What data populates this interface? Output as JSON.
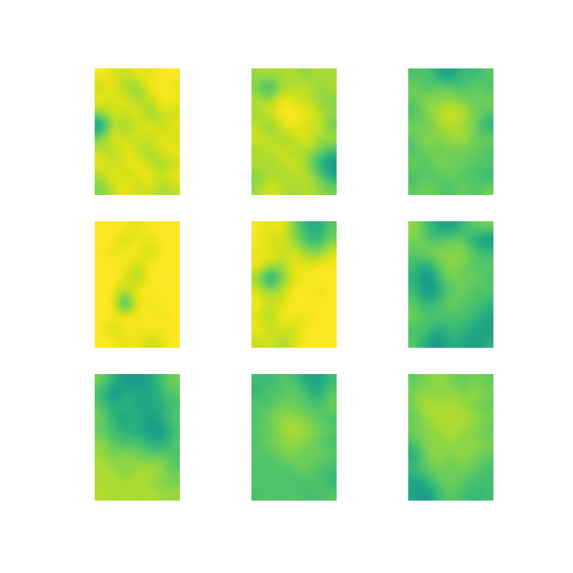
{
  "chart_data": [
    {
      "type": "heatmap",
      "tick_labels": false,
      "zlim": [
        0,
        1
      ],
      "cells": [
        [
          1,
          0.95,
          0.9,
          1,
          0.95,
          1,
          1
        ],
        [
          0.9,
          1,
          0.85,
          0.8,
          1,
          1,
          0.95
        ],
        [
          1,
          0.9,
          1,
          0.85,
          0.9,
          1,
          1
        ],
        [
          0.85,
          0.95,
          0.9,
          1,
          0.8,
          0.95,
          0.9
        ],
        [
          0.5,
          0.9,
          0.85,
          0.9,
          1,
          0.85,
          1
        ],
        [
          0.8,
          1,
          0.9,
          0.95,
          0.9,
          1,
          0.9
        ],
        [
          0.9,
          0.85,
          1,
          0.9,
          0.85,
          0.95,
          1
        ],
        [
          1,
          0.9,
          0.95,
          1,
          0.9,
          0.85,
          0.9
        ],
        [
          0.85,
          1,
          0.9,
          0.95,
          1,
          0.9,
          1
        ],
        [
          0.8,
          0.9,
          1,
          0.9,
          0.95,
          0.85,
          0.9
        ]
      ]
    },
    {
      "type": "heatmap",
      "tick_labels": false,
      "zlim": [
        0,
        1
      ],
      "cells": [
        [
          0.85,
          0.9,
          0.85,
          0.9,
          0.8,
          0.9,
          0.85
        ],
        [
          0.8,
          0.6,
          0.9,
          0.85,
          0.95,
          0.8,
          0.9
        ],
        [
          0.9,
          0.85,
          1,
          0.95,
          0.9,
          0.85,
          0.8
        ],
        [
          0.85,
          0.95,
          1,
          1,
          1,
          0.9,
          0.85
        ],
        [
          0.9,
          0.8,
          0.95,
          1,
          0.9,
          0.95,
          0.75
        ],
        [
          0.95,
          0.9,
          0.85,
          0.9,
          1,
          0.85,
          0.9
        ],
        [
          0.85,
          0.9,
          0.95,
          0.85,
          0.9,
          0.8,
          0.7
        ],
        [
          0.9,
          0.85,
          0.9,
          0.95,
          0.85,
          0.65,
          0.5
        ],
        [
          0.8,
          0.9,
          0.85,
          0.9,
          0.9,
          0.8,
          0.6
        ],
        [
          0.85,
          0.95,
          0.9,
          0.85,
          0.9,
          0.85,
          0.8
        ]
      ]
    },
    {
      "type": "heatmap",
      "tick_labels": false,
      "zlim": [
        0,
        1
      ],
      "cells": [
        [
          0.7,
          0.75,
          0.6,
          0.55,
          0.7,
          0.65,
          0.75
        ],
        [
          0.8,
          0.7,
          0.8,
          0.75,
          0.7,
          0.8,
          0.7
        ],
        [
          0.75,
          0.85,
          0.8,
          0.85,
          0.8,
          0.75,
          0.8
        ],
        [
          0.7,
          0.8,
          0.9,
          0.95,
          0.9,
          0.8,
          0.75
        ],
        [
          0.8,
          0.75,
          0.85,
          0.9,
          0.85,
          0.8,
          0.6
        ],
        [
          0.75,
          0.85,
          0.8,
          0.85,
          0.9,
          0.75,
          0.8
        ],
        [
          0.7,
          0.8,
          0.75,
          0.8,
          0.75,
          0.8,
          0.7
        ],
        [
          0.8,
          0.7,
          0.85,
          0.75,
          0.8,
          0.7,
          0.75
        ],
        [
          0.7,
          0.75,
          0.7,
          0.8,
          0.7,
          0.75,
          0.65
        ],
        [
          0.75,
          0.8,
          0.75,
          0.7,
          0.8,
          0.7,
          0.8
        ]
      ]
    },
    {
      "type": "heatmap",
      "tick_labels": false,
      "zlim": [
        0,
        1
      ],
      "cells": [
        [
          1,
          1,
          1,
          0.95,
          1,
          1,
          1
        ],
        [
          1,
          1,
          0.9,
          1,
          0.95,
          1,
          1
        ],
        [
          1,
          0.95,
          1,
          1,
          0.9,
          1,
          1
        ],
        [
          1,
          1,
          1,
          0.9,
          1,
          1,
          1
        ],
        [
          1,
          1,
          0.95,
          0.85,
          1,
          1,
          1
        ],
        [
          1,
          1,
          0.9,
          1,
          1,
          1,
          1
        ],
        [
          1,
          1,
          0.55,
          1,
          0.95,
          1,
          1
        ],
        [
          1,
          1,
          1,
          1,
          1,
          0.95,
          1
        ],
        [
          1,
          0.9,
          1,
          0.95,
          1,
          1,
          1
        ],
        [
          1,
          1,
          0.95,
          1,
          0.9,
          0.95,
          1
        ]
      ]
    },
    {
      "type": "heatmap",
      "tick_labels": false,
      "zlim": [
        0,
        1
      ],
      "cells": [
        [
          1,
          0.95,
          1,
          0.8,
          0.65,
          0.6,
          0.75
        ],
        [
          1,
          0.9,
          0.95,
          0.85,
          0.7,
          0.65,
          0.8
        ],
        [
          0.95,
          1,
          0.9,
          0.95,
          0.85,
          0.8,
          0.95
        ],
        [
          1,
          0.9,
          0.85,
          1,
          0.95,
          1,
          1
        ],
        [
          0.85,
          0.5,
          0.8,
          0.95,
          1,
          1,
          1
        ],
        [
          0.95,
          0.85,
          0.9,
          1,
          1,
          0.95,
          1
        ],
        [
          1,
          0.9,
          0.95,
          1,
          1,
          1,
          1
        ],
        [
          0.95,
          0.85,
          1,
          1,
          0.95,
          1,
          1
        ],
        [
          1,
          0.9,
          0.95,
          0.9,
          1,
          1,
          1
        ],
        [
          0.9,
          0.95,
          0.85,
          0.95,
          1,
          1,
          1
        ]
      ]
    },
    {
      "type": "heatmap",
      "tick_labels": false,
      "zlim": [
        0,
        1
      ],
      "cells": [
        [
          0.85,
          0.7,
          0.6,
          0.55,
          0.7,
          0.75,
          0.8
        ],
        [
          0.8,
          0.75,
          0.7,
          0.8,
          0.75,
          0.6,
          0.5
        ],
        [
          0.75,
          0.8,
          0.85,
          0.8,
          0.85,
          0.75,
          0.7
        ],
        [
          0.7,
          0.6,
          0.75,
          0.85,
          0.8,
          0.7,
          0.75
        ],
        [
          0.65,
          0.45,
          0.7,
          0.8,
          0.75,
          0.8,
          0.7
        ],
        [
          0.7,
          0.5,
          0.6,
          0.75,
          0.8,
          0.7,
          0.75
        ],
        [
          0.75,
          0.65,
          0.7,
          0.8,
          0.7,
          0.75,
          0.65
        ],
        [
          0.8,
          0.7,
          0.75,
          0.7,
          0.75,
          0.65,
          0.6
        ],
        [
          0.7,
          0.75,
          0.6,
          0.7,
          0.65,
          0.6,
          0.55
        ],
        [
          0.75,
          0.6,
          0.5,
          0.65,
          0.6,
          0.55,
          0.65
        ]
      ]
    },
    {
      "type": "heatmap",
      "tick_labels": false,
      "zlim": [
        0,
        1
      ],
      "cells": [
        [
          0.8,
          0.65,
          0.55,
          0.5,
          0.6,
          0.7,
          0.8
        ],
        [
          0.7,
          0.5,
          0.6,
          0.65,
          0.55,
          0.7,
          0.75
        ],
        [
          0.75,
          0.6,
          0.7,
          0.55,
          0.65,
          0.6,
          0.7
        ],
        [
          0.8,
          0.65,
          0.55,
          0.7,
          0.5,
          0.65,
          0.75
        ],
        [
          0.75,
          0.7,
          0.65,
          0.6,
          0.55,
          0.5,
          0.7
        ],
        [
          0.85,
          0.75,
          0.7,
          0.75,
          0.65,
          0.6,
          0.75
        ],
        [
          0.85,
          0.8,
          0.85,
          0.8,
          0.75,
          0.8,
          0.7
        ],
        [
          0.9,
          0.85,
          0.8,
          0.85,
          0.9,
          0.85,
          0.75
        ],
        [
          0.85,
          0.9,
          0.85,
          0.9,
          0.85,
          0.8,
          0.8
        ],
        [
          0.9,
          0.85,
          0.9,
          0.85,
          0.9,
          0.85,
          0.85
        ]
      ]
    },
    {
      "type": "heatmap",
      "tick_labels": false,
      "zlim": [
        0,
        1
      ],
      "cells": [
        [
          0.7,
          0.65,
          0.75,
          0.7,
          0.6,
          0.55,
          0.7
        ],
        [
          0.65,
          0.75,
          0.7,
          0.8,
          0.7,
          0.6,
          0.75
        ],
        [
          0.75,
          0.7,
          0.8,
          0.75,
          0.75,
          0.7,
          0.8
        ],
        [
          0.7,
          0.8,
          0.85,
          0.85,
          0.8,
          0.75,
          0.7
        ],
        [
          0.75,
          0.75,
          0.85,
          0.9,
          0.85,
          0.8,
          0.75
        ],
        [
          0.7,
          0.8,
          0.8,
          0.85,
          0.8,
          0.75,
          0.7
        ],
        [
          0.75,
          0.7,
          0.8,
          0.8,
          0.75,
          0.8,
          0.75
        ],
        [
          0.7,
          0.75,
          0.7,
          0.75,
          0.8,
          0.7,
          0.7
        ],
        [
          0.75,
          0.7,
          0.75,
          0.7,
          0.7,
          0.75,
          0.65
        ],
        [
          0.7,
          0.75,
          0.7,
          0.75,
          0.7,
          0.7,
          0.75
        ]
      ]
    },
    {
      "type": "heatmap",
      "tick_labels": false,
      "zlim": [
        0,
        1
      ],
      "cells": [
        [
          0.75,
          0.8,
          0.85,
          0.8,
          0.75,
          0.8,
          0.75
        ],
        [
          0.8,
          0.85,
          0.8,
          0.85,
          0.8,
          0.85,
          0.8
        ],
        [
          0.8,
          0.9,
          0.85,
          0.9,
          0.85,
          0.8,
          0.75
        ],
        [
          0.75,
          0.85,
          0.9,
          0.85,
          0.9,
          0.85,
          0.8
        ],
        [
          0.8,
          0.8,
          0.85,
          0.9,
          0.85,
          0.8,
          0.75
        ],
        [
          0.7,
          0.85,
          0.8,
          0.85,
          0.8,
          0.85,
          0.8
        ],
        [
          0.6,
          0.8,
          0.85,
          0.8,
          0.85,
          0.8,
          0.75
        ],
        [
          0.7,
          0.75,
          0.8,
          0.75,
          0.8,
          0.75,
          0.7
        ],
        [
          0.55,
          0.65,
          0.75,
          0.8,
          0.75,
          0.7,
          0.7
        ],
        [
          0.6,
          0.5,
          0.7,
          0.75,
          0.7,
          0.65,
          0.7
        ]
      ]
    }
  ]
}
